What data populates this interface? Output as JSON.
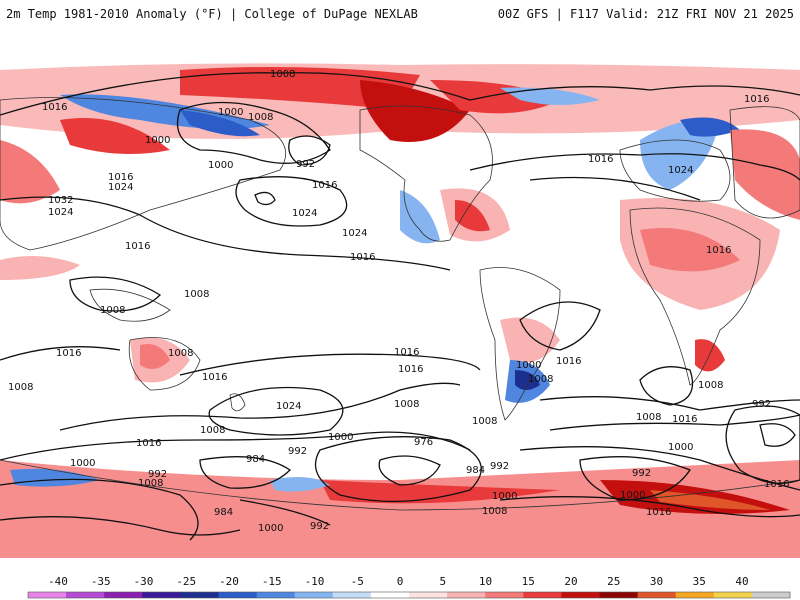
{
  "header": {
    "title_left": "2m Temp 1981-2010 Anomaly (°F) | College of DuPage NEXLAB",
    "title_right": "00Z GFS | F117 Valid: 21Z FRI NOV 21 2025"
  },
  "legend": {
    "ticks": [
      "-40",
      "-35",
      "-30",
      "-25",
      "-20",
      "-15",
      "-10",
      "-5",
      "0",
      "5",
      "10",
      "15",
      "20",
      "25",
      "30",
      "35",
      "40"
    ],
    "colors": [
      "#e884e8",
      "#b44cd6",
      "#8a1fb0",
      "#3a1a9a",
      "#1c2f8f",
      "#2c5cc8",
      "#4f86e0",
      "#86b4f0",
      "#c4dcf7",
      "#ffffff",
      "#fde2e2",
      "#f9b3b3",
      "#f47a7a",
      "#e83a3a",
      "#c40f0f",
      "#8c0505",
      "#e0552a",
      "#f5a623",
      "#f2d24a",
      "#cccccc"
    ]
  },
  "isobars": {
    "labels": [
      "1008",
      "1000",
      "1000",
      "1008",
      "992",
      "1016",
      "1024",
      "1024",
      "1016",
      "1000",
      "1016",
      "1024",
      "1032",
      "1024",
      "1016",
      "1016",
      "1008",
      "1008",
      "1016",
      "1008",
      "1016",
      "1008",
      "1016",
      "1016",
      "1000",
      "1008",
      "1016",
      "1008",
      "1024",
      "1008",
      "976",
      "984",
      "992",
      "1000",
      "1008",
      "992",
      "984",
      "1008",
      "1000",
      "984",
      "1000",
      "992",
      "1000",
      "1008",
      "1016",
      "1008",
      "992",
      "1000",
      "1016",
      "1024",
      "992",
      "1016",
      "1016",
      "1016",
      "1016",
      "1000",
      "1008",
      "992",
      "1016"
    ]
  }
}
